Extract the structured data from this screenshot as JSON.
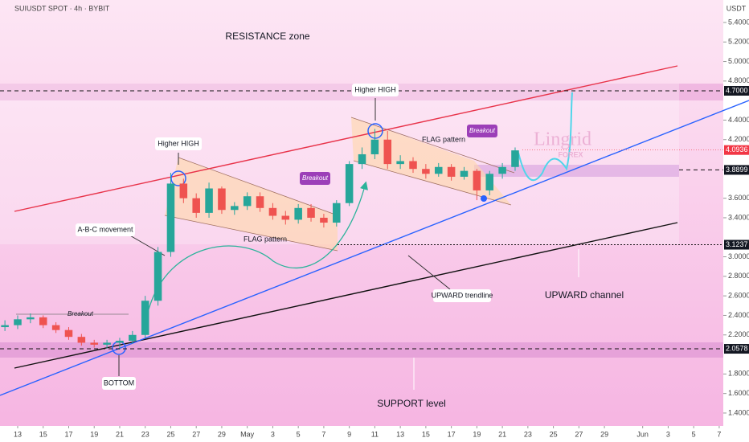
{
  "chart_data": {
    "type": "candlestick",
    "title": "SUIUSDT SPOT · 4h · BYBIT",
    "currency": "USDT",
    "up_color": "#26a69a",
    "down_color": "#ef5350",
    "xlim": [
      -1.386,
      55.32
    ],
    "ylim": [
      1.268,
      5.63
    ],
    "xticks": [
      {
        "value": 0,
        "label": "13"
      },
      {
        "value": 2,
        "label": "15"
      },
      {
        "value": 4,
        "label": "17"
      },
      {
        "value": 6,
        "label": "19"
      },
      {
        "value": 8,
        "label": "21"
      },
      {
        "value": 10,
        "label": "23"
      },
      {
        "value": 12,
        "label": "25"
      },
      {
        "value": 14,
        "label": "27"
      },
      {
        "value": 16,
        "label": "29"
      },
      {
        "value": 18,
        "label": "May"
      },
      {
        "value": 20,
        "label": "3"
      },
      {
        "value": 22,
        "label": "5"
      },
      {
        "value": 24,
        "label": "7"
      },
      {
        "value": 26,
        "label": "9"
      },
      {
        "value": 28,
        "label": "11"
      },
      {
        "value": 30,
        "label": "13"
      },
      {
        "value": 32,
        "label": "15"
      },
      {
        "value": 34,
        "label": "17"
      },
      {
        "value": 36,
        "label": "19"
      },
      {
        "value": 38,
        "label": "21"
      },
      {
        "value": 40,
        "label": "23"
      },
      {
        "value": 42,
        "label": "25"
      },
      {
        "value": 44,
        "label": "27"
      },
      {
        "value": 46,
        "label": "29"
      },
      {
        "value": 49,
        "label": "Jun"
      },
      {
        "value": 51,
        "label": "3"
      },
      {
        "value": 53,
        "label": "5"
      },
      {
        "value": 55,
        "label": "7"
      }
    ],
    "yticks": [
      {
        "value": 1.4,
        "label": "1.4000"
      },
      {
        "value": 1.6,
        "label": "1.6000"
      },
      {
        "value": 1.8,
        "label": "1.8000"
      },
      {
        "value": 2.2,
        "label": "2.2000"
      },
      {
        "value": 2.4,
        "label": "2.4000"
      },
      {
        "value": 2.6,
        "label": "2.6000"
      },
      {
        "value": 2.8,
        "label": "2.8000"
      },
      {
        "value": 3.0,
        "label": "3.0000"
      },
      {
        "value": 3.4,
        "label": "3.4000"
      },
      {
        "value": 3.6,
        "label": "3.6000"
      },
      {
        "value": 4.2,
        "label": "4.2000"
      },
      {
        "value": 4.4,
        "label": "4.4000"
      },
      {
        "value": 4.8,
        "label": "4.8000"
      },
      {
        "value": 5.0,
        "label": "5.0000"
      },
      {
        "value": 5.2,
        "label": "5.2000"
      },
      {
        "value": 5.4,
        "label": "5.4000"
      }
    ],
    "levels": [
      {
        "value": 4.7,
        "label": "4.7000",
        "color": "#131722"
      },
      {
        "value": 4.0936,
        "label": "4.0936",
        "color": "#f23645"
      },
      {
        "value": 3.8899,
        "label": "3.8899",
        "color": "#131722"
      },
      {
        "value": 3.1237,
        "label": "3.1237",
        "color": "#131722"
      },
      {
        "value": 2.0578,
        "label": "2.0578",
        "color": "#131722"
      }
    ],
    "x": [
      -1,
      0,
      1,
      2,
      3,
      4,
      5,
      6,
      7,
      8,
      9,
      10,
      11,
      12,
      13,
      14,
      15,
      16,
      17,
      18,
      19,
      20,
      21,
      22,
      23,
      24,
      25,
      26,
      27,
      28,
      29,
      30,
      31,
      32,
      33,
      34,
      35,
      36,
      37,
      38,
      39
    ],
    "open": [
      2.28,
      2.3,
      2.36,
      2.38,
      2.3,
      2.25,
      2.18,
      2.12,
      2.1,
      2.12,
      2.14,
      2.2,
      2.55,
      3.05,
      3.75,
      3.6,
      3.45,
      3.7,
      3.48,
      3.52,
      3.62,
      3.5,
      3.42,
      3.38,
      3.5,
      3.4,
      3.35,
      3.55,
      3.95,
      4.05,
      4.2,
      3.95,
      3.98,
      3.9,
      3.85,
      3.92,
      3.82,
      3.88,
      3.68,
      3.85,
      3.92
    ],
    "high": [
      2.35,
      2.4,
      2.42,
      2.4,
      2.33,
      2.28,
      2.21,
      2.15,
      2.15,
      2.17,
      2.24,
      2.6,
      3.1,
      3.86,
      3.8,
      3.65,
      3.76,
      3.72,
      3.56,
      3.66,
      3.66,
      3.55,
      3.47,
      3.54,
      3.54,
      3.44,
      3.58,
      3.98,
      4.12,
      4.31,
      4.29,
      4.04,
      4.02,
      3.95,
      3.96,
      3.95,
      3.92,
      3.9,
      3.88,
      3.96,
      4.12
    ],
    "low": [
      2.24,
      2.26,
      2.32,
      2.27,
      2.22,
      2.15,
      2.09,
      2.07,
      2.06,
      2.05,
      2.11,
      2.17,
      2.5,
      3.0,
      3.55,
      3.4,
      3.4,
      3.44,
      3.43,
      3.48,
      3.46,
      3.38,
      3.33,
      3.34,
      3.36,
      3.3,
      3.31,
      3.52,
      3.9,
      4.0,
      3.9,
      3.9,
      3.86,
      3.8,
      3.82,
      3.78,
      3.79,
      3.58,
      3.63,
      3.8,
      3.88
    ],
    "close": [
      2.3,
      2.36,
      2.38,
      2.3,
      2.25,
      2.18,
      2.12,
      2.1,
      2.12,
      2.14,
      2.2,
      2.55,
      3.05,
      3.75,
      3.6,
      3.45,
      3.7,
      3.48,
      3.52,
      3.62,
      3.5,
      3.42,
      3.38,
      3.5,
      3.4,
      3.35,
      3.55,
      3.95,
      4.05,
      4.2,
      3.95,
      3.98,
      3.9,
      3.85,
      3.92,
      3.82,
      3.88,
      3.68,
      3.85,
      3.92,
      4.09
    ],
    "annotations": {
      "resistance": "RESISTANCE zone",
      "higher_high_1": "Higher HIGH",
      "higher_high_2": "Higher HIGH",
      "flag_1": "FLAG pattern",
      "flag_2": "FLAG pattern",
      "breakout_1": "Breakout",
      "breakout_2": "Breakout",
      "breakout_3": "Breakout",
      "abc": "A-B-C movement",
      "trendline": "UPWARD trendline",
      "channel": "UPWARD channel",
      "bottom": "BOTTOM",
      "support": "SUPPORT level",
      "brand": "Lingrid",
      "brand_sub": "FOREX"
    }
  }
}
